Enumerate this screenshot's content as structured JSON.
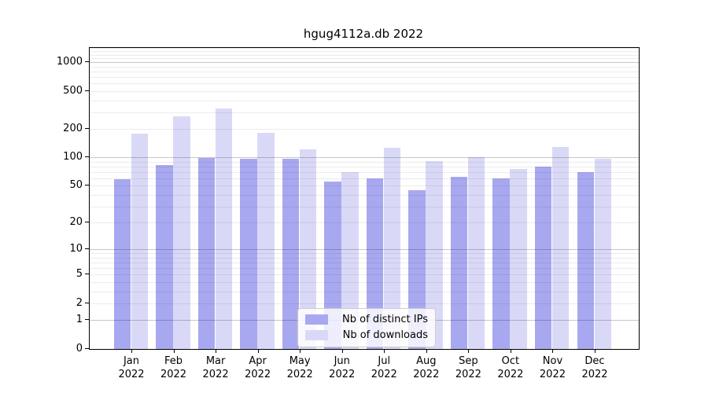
{
  "chart_data": {
    "type": "bar",
    "title": "hgug4112a.db 2022",
    "categories": [
      "Jan",
      "Feb",
      "Mar",
      "Apr",
      "May",
      "Jun",
      "Jul",
      "Aug",
      "Sep",
      "Oct",
      "Nov",
      "Dec"
    ],
    "year_label": "2022",
    "series": [
      {
        "name": "Nb of distinct IPs",
        "color": "#a8a8f0",
        "values": [
          59,
          83,
          98,
          97,
          97,
          55,
          60,
          45,
          62,
          60,
          80,
          70
        ]
      },
      {
        "name": "Nb of downloads",
        "color": "#d9d9f7",
        "values": [
          179,
          272,
          328,
          182,
          121,
          70,
          126,
          91,
          100,
          75,
          129,
          97
        ]
      }
    ],
    "y_ticks": [
      0,
      1,
      2,
      5,
      10,
      20,
      50,
      100,
      200,
      500,
      1000
    ],
    "y_scale": "log1p",
    "ylim": [
      0,
      1413
    ],
    "grid": "horizontal, minor log lines light, decade lines darker",
    "legend_position": "lower center",
    "legend_opacity": 0.8
  }
}
